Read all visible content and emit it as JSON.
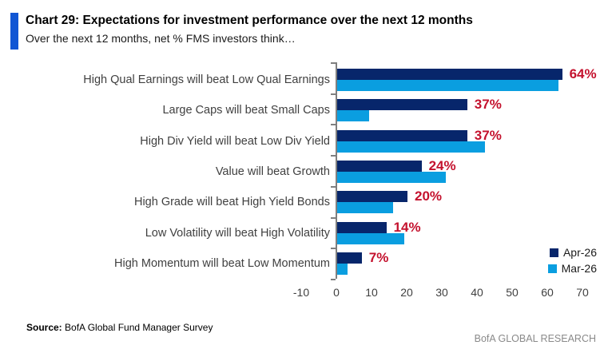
{
  "header": {
    "title": "Chart 29: Expectations for investment performance over the next 12 months",
    "subtitle": "Over the next 12 months, net % FMS investors think…",
    "accent_color": "#1156d4"
  },
  "chart_data": {
    "type": "bar",
    "orientation": "horizontal",
    "title": "Chart 29: Expectations for investment performance over the next 12 months",
    "subtitle": "Over the next 12 months, net % FMS investors think…",
    "xlabel": "",
    "ylabel": "",
    "xlim": [
      -10,
      70
    ],
    "x_ticks": [
      -10,
      0,
      10,
      20,
      30,
      40,
      50,
      60,
      70
    ],
    "grid": false,
    "legend_position": "bottom-right",
    "categories": [
      "High Qual Earnings will beat Low Qual Earnings",
      "Large Caps will beat Small Caps",
      "High Div Yield will beat Low Div Yield",
      "Value will beat Growth",
      "High Grade will beat High Yield Bonds",
      "Low Volatility will beat High Volatility",
      "High Momentum will beat Low Momentum"
    ],
    "series": [
      {
        "name": "Apr-26",
        "color": "#07266b",
        "values": [
          64,
          37,
          37,
          24,
          20,
          14,
          7
        ]
      },
      {
        "name": "Mar-26",
        "color": "#0a9ee0",
        "values": [
          63,
          9,
          42,
          31,
          16,
          19,
          3
        ]
      }
    ],
    "data_labels": [
      "64%",
      "37%",
      "37%",
      "24%",
      "20%",
      "14%",
      "7%"
    ],
    "data_label_color": "#c4122e",
    "axis_color": "#7f7f7f",
    "tick_label_color": "#404040",
    "category_label_color": "#404040"
  },
  "footer": {
    "source_label": "Source:",
    "source_text": " BofA Global Fund Manager Survey",
    "branding": "BofA GLOBAL RESEARCH"
  }
}
